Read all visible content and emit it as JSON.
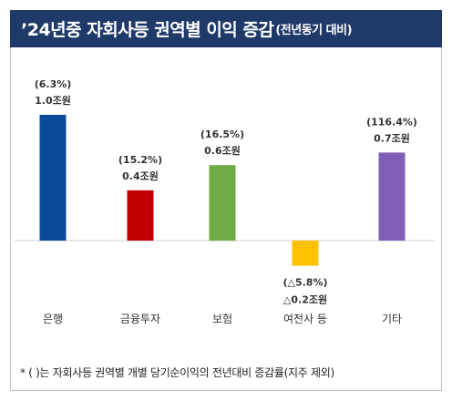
{
  "title": "’24년중 자회사등 권역별 이익 증감",
  "subtitle": "(전년동기 대비)",
  "footnote": "* (   )는 자회사등 권역별 개별 당기순이익의 전년대비 증감률(지주 제외)",
  "chart_data": {
    "type": "bar",
    "categories": [
      "은행",
      "금융투자",
      "보험",
      "여전사 등",
      "기타"
    ],
    "values": [
      1.0,
      0.4,
      0.6,
      -0.2,
      0.7
    ],
    "value_labels": [
      "1.0조원",
      "0.4조원",
      "0.6조원",
      "△0.2조원",
      "0.7조원"
    ],
    "pct_labels": [
      "(6.3%)",
      "(15.2%)",
      "(16.5%)",
      "(△5.8%)",
      "(116.4%)"
    ],
    "colors": [
      "#0b4a99",
      "#c00000",
      "#6fac46",
      "#ffc000",
      "#7f60b6"
    ],
    "unit": "조원",
    "ylim": [
      -0.2,
      1.0
    ],
    "grid": false,
    "legend": "none",
    "title": "’24년중 자회사등 권역별 이익 증감",
    "xlabel": "",
    "ylabel": ""
  }
}
